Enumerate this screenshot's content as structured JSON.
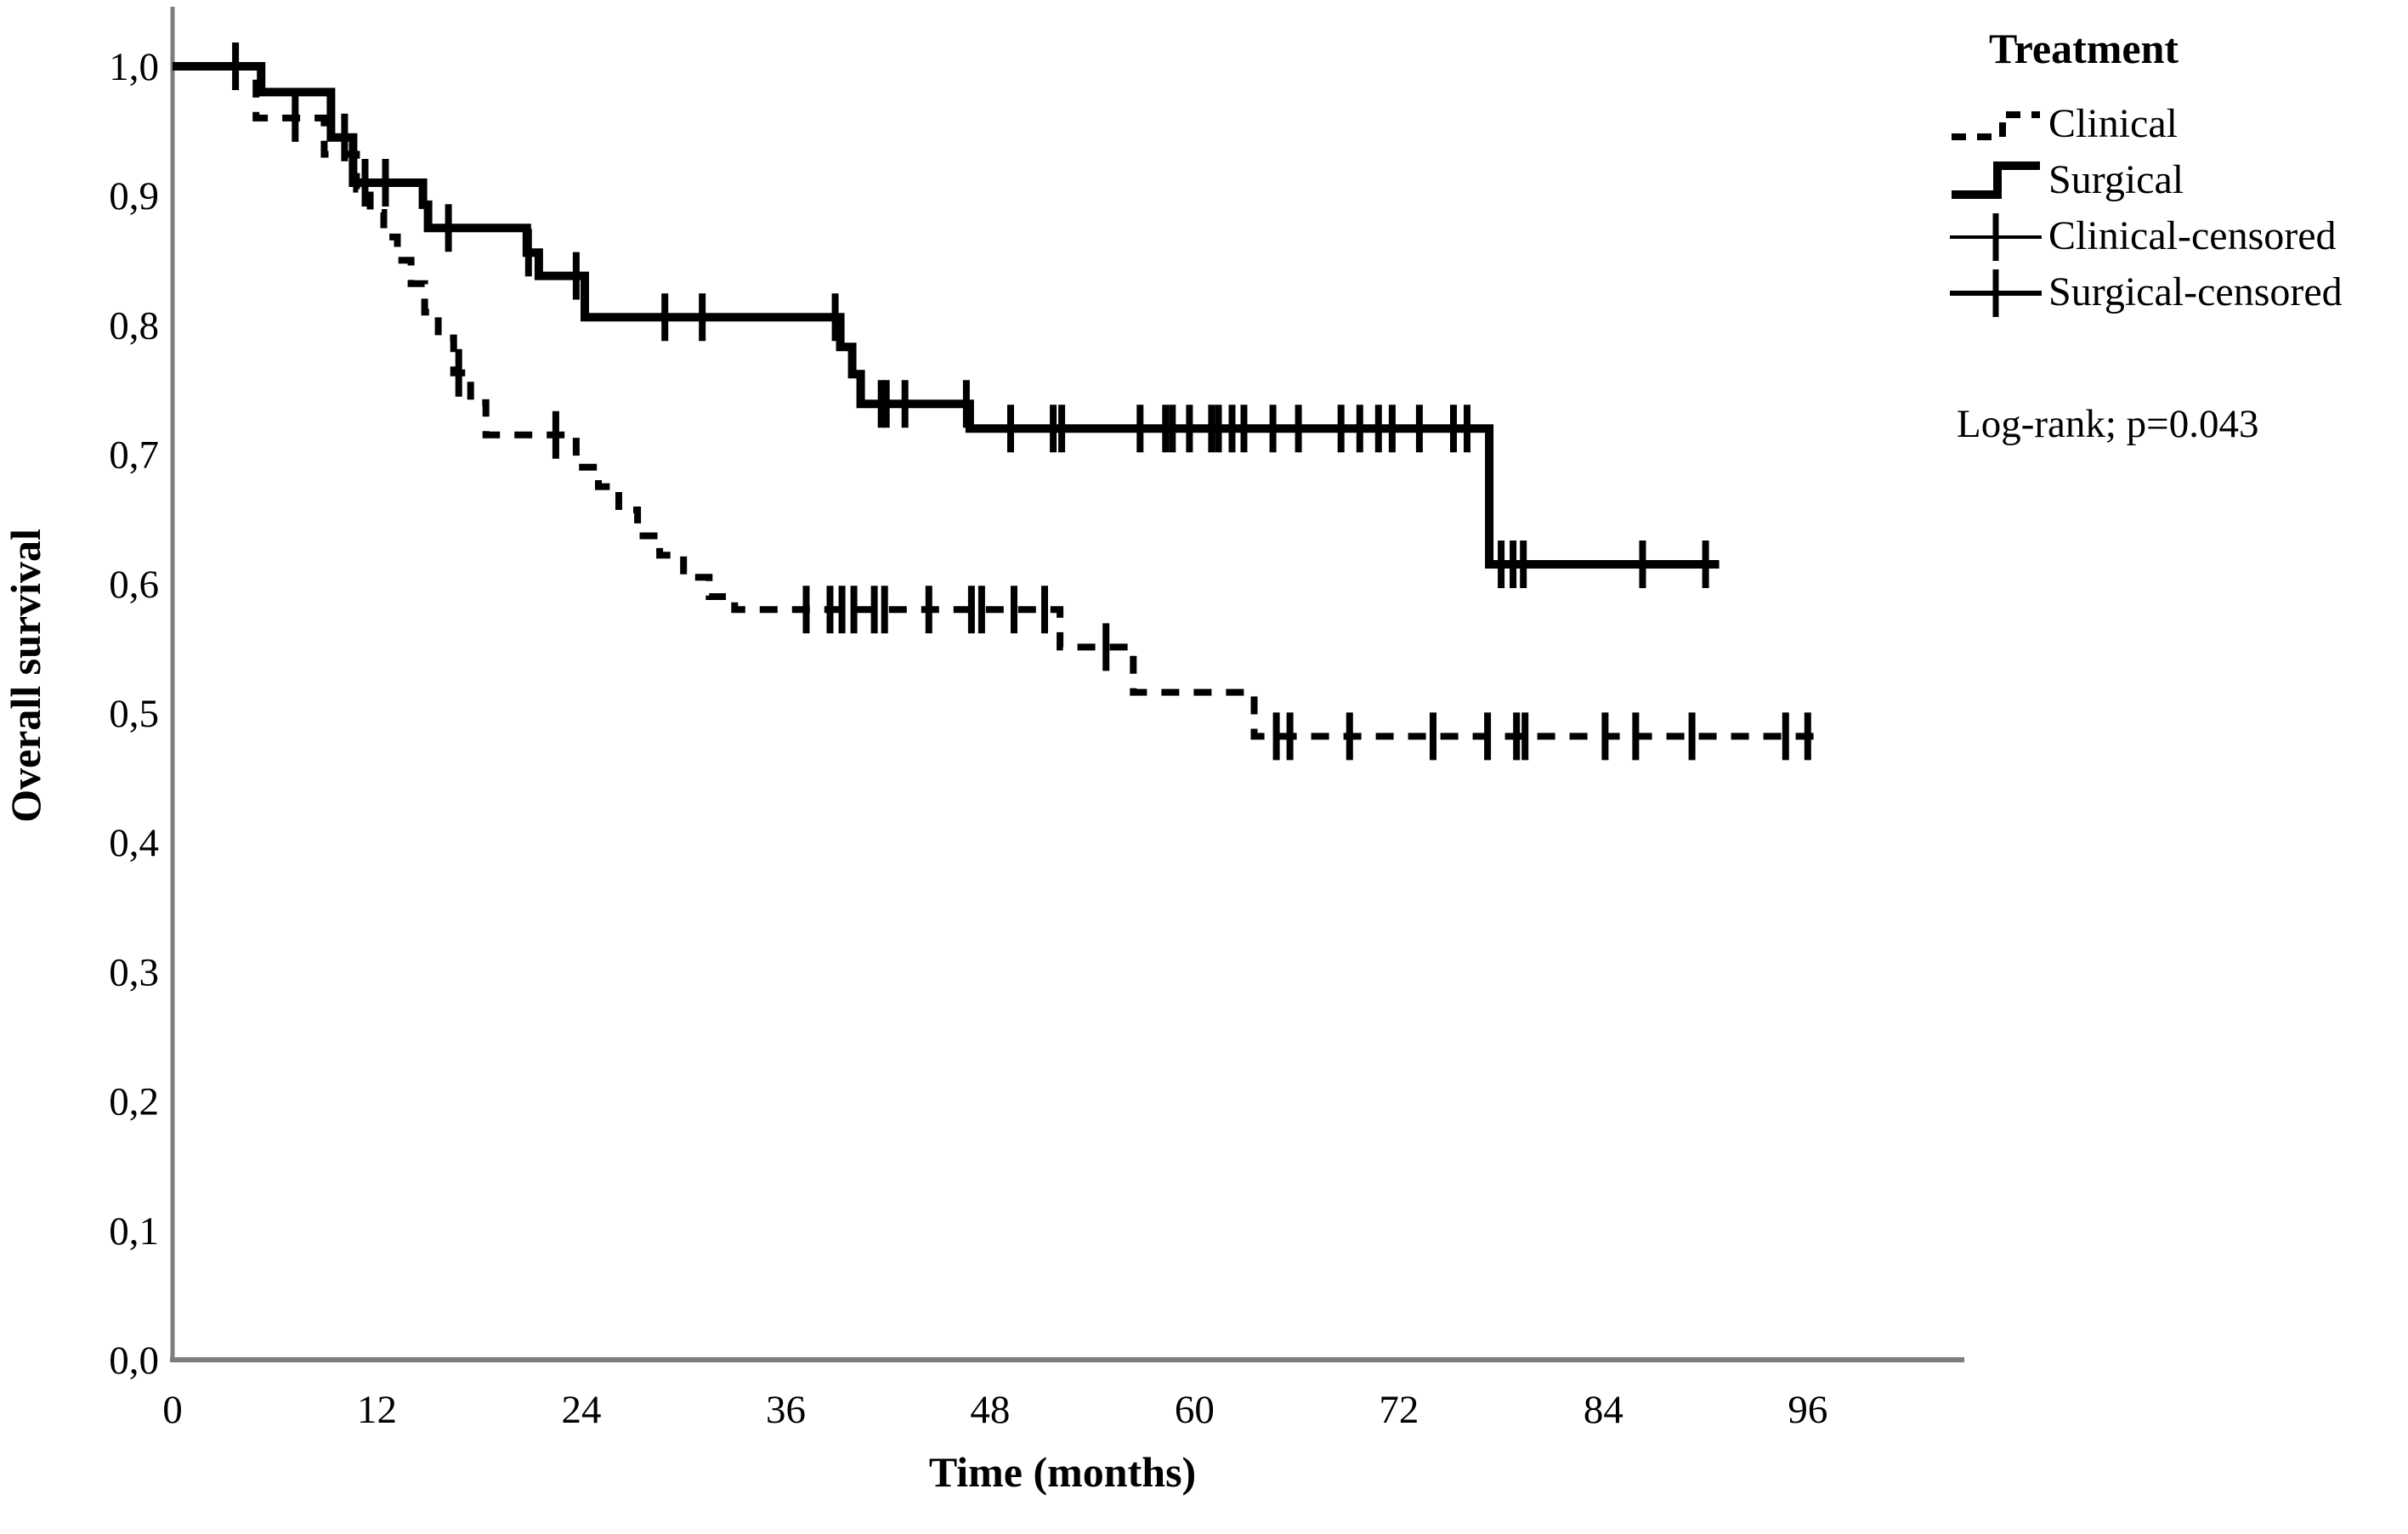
{
  "colors": {
    "curve": "#000000",
    "axis": "#7d7d7d",
    "text": "#000000",
    "background": "#ffffff"
  },
  "legend": {
    "title": "Treatment",
    "items": [
      {
        "label": "Clinical",
        "symbol": "dashed-step-line"
      },
      {
        "label": "Surgical",
        "symbol": "solid-step-line"
      },
      {
        "label": "Clinical-censored",
        "symbol": "plus-on-thin-line"
      },
      {
        "label": "Surgical-censored",
        "symbol": "plus-on-thick-line"
      }
    ]
  },
  "annotation": {
    "log_rank": "Log-rank; p=0.043"
  },
  "chart_data": {
    "type": "line",
    "subtype": "kaplan-meier-step",
    "title": "",
    "xlabel": "Time (months)",
    "ylabel": "Overall survival",
    "xlim": [
      0,
      105
    ],
    "ylim": [
      0.0,
      1.0
    ],
    "grid": false,
    "legend_position": "top-right",
    "decimal_separator": ",",
    "log_rank_p": "0.043",
    "x_ticks": [
      0,
      12,
      24,
      36,
      48,
      60,
      72,
      84,
      96
    ],
    "x_tick_labels": [
      "0",
      "12",
      "24",
      "36",
      "48",
      "60",
      "72",
      "84",
      "96"
    ],
    "y_ticks": [
      1.0,
      0.9,
      0.8,
      0.7,
      0.6,
      0.5,
      0.4,
      0.3,
      0.2,
      0.1,
      0.0
    ],
    "y_tick_labels": [
      "1,0",
      "0,9",
      "0,8",
      "0,7",
      "0,6",
      "0,5",
      "0,4",
      "0,3",
      "0,2",
      "0,1",
      "0,0"
    ],
    "series": [
      {
        "name": "Surgical",
        "style": "solid",
        "end": 90.8,
        "steps": [
          [
            0,
            1.0
          ],
          [
            5.2,
            0.98
          ],
          [
            9.3,
            0.945
          ],
          [
            10.6,
            0.91
          ],
          [
            14.7,
            0.893
          ],
          [
            15.0,
            0.875
          ],
          [
            20.8,
            0.856
          ],
          [
            21.5,
            0.838
          ],
          [
            24.2,
            0.806
          ],
          [
            39.2,
            0.783
          ],
          [
            39.9,
            0.762
          ],
          [
            40.4,
            0.739
          ],
          [
            46.8,
            0.72
          ],
          [
            77.3,
            0.615
          ]
        ],
        "censored": [
          [
            10.1,
            0.945
          ],
          [
            11.3,
            0.91
          ],
          [
            12.5,
            0.91
          ],
          [
            16.2,
            0.875
          ],
          [
            20.9,
            0.856
          ],
          [
            23.7,
            0.838
          ],
          [
            28.9,
            0.806
          ],
          [
            31.1,
            0.806
          ],
          [
            38.9,
            0.806
          ],
          [
            41.6,
            0.739
          ],
          [
            41.9,
            0.739
          ],
          [
            43.0,
            0.739
          ],
          [
            46.6,
            0.739
          ],
          [
            49.2,
            0.72
          ],
          [
            51.7,
            0.72
          ],
          [
            52.2,
            0.72
          ],
          [
            56.8,
            0.72
          ],
          [
            58.3,
            0.72
          ],
          [
            58.7,
            0.72
          ],
          [
            59.7,
            0.72
          ],
          [
            61.0,
            0.72
          ],
          [
            61.4,
            0.72
          ],
          [
            62.2,
            0.72
          ],
          [
            62.9,
            0.72
          ],
          [
            64.6,
            0.72
          ],
          [
            66.1,
            0.72
          ],
          [
            68.6,
            0.72
          ],
          [
            69.7,
            0.72
          ],
          [
            70.8,
            0.72
          ],
          [
            71.6,
            0.72
          ],
          [
            73.2,
            0.72
          ],
          [
            75.2,
            0.72
          ],
          [
            76.0,
            0.72
          ],
          [
            78.0,
            0.615
          ],
          [
            78.7,
            0.615
          ],
          [
            79.3,
            0.615
          ],
          [
            86.3,
            0.615
          ],
          [
            90.0,
            0.615
          ]
        ]
      },
      {
        "name": "Clinical",
        "style": "dashed",
        "end": 97.0,
        "steps": [
          [
            0,
            1.0
          ],
          [
            4.9,
            0.96
          ],
          [
            8.9,
            0.932
          ],
          [
            10.8,
            0.905
          ],
          [
            11.6,
            0.887
          ],
          [
            12.4,
            0.868
          ],
          [
            13.2,
            0.85
          ],
          [
            14.0,
            0.832
          ],
          [
            14.8,
            0.81
          ],
          [
            15.6,
            0.79
          ],
          [
            16.5,
            0.763
          ],
          [
            17.5,
            0.74
          ],
          [
            18.4,
            0.715
          ],
          [
            23.7,
            0.69
          ],
          [
            25.0,
            0.675
          ],
          [
            26.2,
            0.657
          ],
          [
            27.3,
            0.637
          ],
          [
            28.6,
            0.622
          ],
          [
            30.0,
            0.605
          ],
          [
            31.5,
            0.59
          ],
          [
            33.0,
            0.58
          ],
          [
            52.1,
            0.551
          ],
          [
            56.4,
            0.516
          ],
          [
            63.5,
            0.482
          ]
        ],
        "censored": [
          [
            3.7,
            1.0
          ],
          [
            7.2,
            0.96
          ],
          [
            16.8,
            0.763
          ],
          [
            22.5,
            0.715
          ],
          [
            37.2,
            0.58
          ],
          [
            38.6,
            0.58
          ],
          [
            39.3,
            0.58
          ],
          [
            40.0,
            0.58
          ],
          [
            41.2,
            0.58
          ],
          [
            41.8,
            0.58
          ],
          [
            44.4,
            0.58
          ],
          [
            46.9,
            0.58
          ],
          [
            47.5,
            0.58
          ],
          [
            49.4,
            0.58
          ],
          [
            51.2,
            0.58
          ],
          [
            54.8,
            0.551
          ],
          [
            64.8,
            0.482
          ],
          [
            65.6,
            0.482
          ],
          [
            69.1,
            0.482
          ],
          [
            74.0,
            0.482
          ],
          [
            77.2,
            0.482
          ],
          [
            78.9,
            0.482
          ],
          [
            79.4,
            0.482
          ],
          [
            84.1,
            0.482
          ],
          [
            85.9,
            0.482
          ],
          [
            89.2,
            0.482
          ],
          [
            94.7,
            0.482
          ],
          [
            96.0,
            0.482
          ]
        ]
      }
    ]
  }
}
